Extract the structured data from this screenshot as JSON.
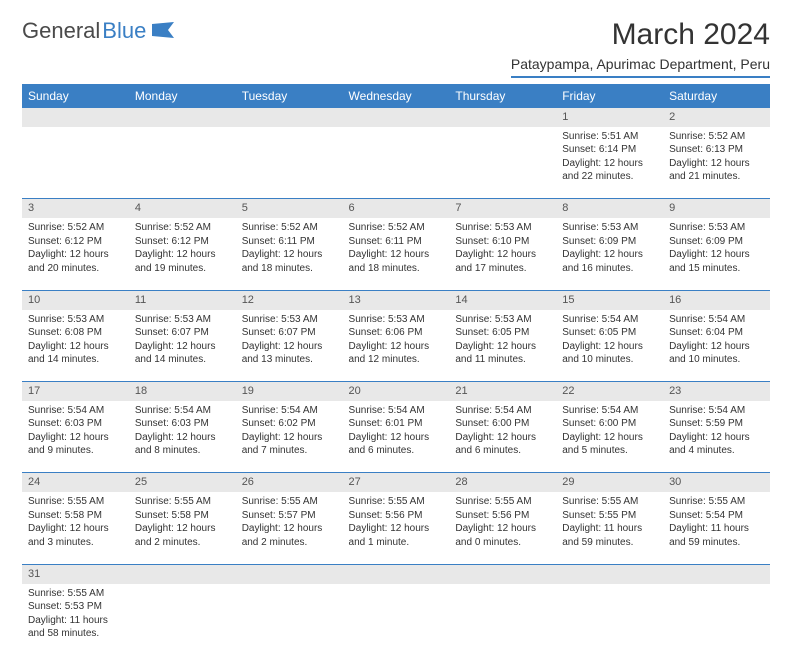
{
  "logo": {
    "text1": "General",
    "text2": "Blue"
  },
  "title": "March 2024",
  "subtitle": "Pataypampa, Apurimac Department, Peru",
  "colors": {
    "header_bg": "#3a7fc4",
    "header_text": "#ffffff",
    "daynum_bg": "#e8e8e8",
    "border": "#3a7fc4",
    "text": "#333333",
    "logo_gray": "#4a4a4a",
    "logo_blue": "#3a7fc4"
  },
  "weekdays": [
    "Sunday",
    "Monday",
    "Tuesday",
    "Wednesday",
    "Thursday",
    "Friday",
    "Saturday"
  ],
  "weeks": [
    [
      null,
      null,
      null,
      null,
      null,
      {
        "d": "1",
        "sr": "Sunrise: 5:51 AM",
        "ss": "Sunset: 6:14 PM",
        "dl1": "Daylight: 12 hours",
        "dl2": "and 22 minutes."
      },
      {
        "d": "2",
        "sr": "Sunrise: 5:52 AM",
        "ss": "Sunset: 6:13 PM",
        "dl1": "Daylight: 12 hours",
        "dl2": "and 21 minutes."
      }
    ],
    [
      {
        "d": "3",
        "sr": "Sunrise: 5:52 AM",
        "ss": "Sunset: 6:12 PM",
        "dl1": "Daylight: 12 hours",
        "dl2": "and 20 minutes."
      },
      {
        "d": "4",
        "sr": "Sunrise: 5:52 AM",
        "ss": "Sunset: 6:12 PM",
        "dl1": "Daylight: 12 hours",
        "dl2": "and 19 minutes."
      },
      {
        "d": "5",
        "sr": "Sunrise: 5:52 AM",
        "ss": "Sunset: 6:11 PM",
        "dl1": "Daylight: 12 hours",
        "dl2": "and 18 minutes."
      },
      {
        "d": "6",
        "sr": "Sunrise: 5:52 AM",
        "ss": "Sunset: 6:11 PM",
        "dl1": "Daylight: 12 hours",
        "dl2": "and 18 minutes."
      },
      {
        "d": "7",
        "sr": "Sunrise: 5:53 AM",
        "ss": "Sunset: 6:10 PM",
        "dl1": "Daylight: 12 hours",
        "dl2": "and 17 minutes."
      },
      {
        "d": "8",
        "sr": "Sunrise: 5:53 AM",
        "ss": "Sunset: 6:09 PM",
        "dl1": "Daylight: 12 hours",
        "dl2": "and 16 minutes."
      },
      {
        "d": "9",
        "sr": "Sunrise: 5:53 AM",
        "ss": "Sunset: 6:09 PM",
        "dl1": "Daylight: 12 hours",
        "dl2": "and 15 minutes."
      }
    ],
    [
      {
        "d": "10",
        "sr": "Sunrise: 5:53 AM",
        "ss": "Sunset: 6:08 PM",
        "dl1": "Daylight: 12 hours",
        "dl2": "and 14 minutes."
      },
      {
        "d": "11",
        "sr": "Sunrise: 5:53 AM",
        "ss": "Sunset: 6:07 PM",
        "dl1": "Daylight: 12 hours",
        "dl2": "and 14 minutes."
      },
      {
        "d": "12",
        "sr": "Sunrise: 5:53 AM",
        "ss": "Sunset: 6:07 PM",
        "dl1": "Daylight: 12 hours",
        "dl2": "and 13 minutes."
      },
      {
        "d": "13",
        "sr": "Sunrise: 5:53 AM",
        "ss": "Sunset: 6:06 PM",
        "dl1": "Daylight: 12 hours",
        "dl2": "and 12 minutes."
      },
      {
        "d": "14",
        "sr": "Sunrise: 5:53 AM",
        "ss": "Sunset: 6:05 PM",
        "dl1": "Daylight: 12 hours",
        "dl2": "and 11 minutes."
      },
      {
        "d": "15",
        "sr": "Sunrise: 5:54 AM",
        "ss": "Sunset: 6:05 PM",
        "dl1": "Daylight: 12 hours",
        "dl2": "and 10 minutes."
      },
      {
        "d": "16",
        "sr": "Sunrise: 5:54 AM",
        "ss": "Sunset: 6:04 PM",
        "dl1": "Daylight: 12 hours",
        "dl2": "and 10 minutes."
      }
    ],
    [
      {
        "d": "17",
        "sr": "Sunrise: 5:54 AM",
        "ss": "Sunset: 6:03 PM",
        "dl1": "Daylight: 12 hours",
        "dl2": "and 9 minutes."
      },
      {
        "d": "18",
        "sr": "Sunrise: 5:54 AM",
        "ss": "Sunset: 6:03 PM",
        "dl1": "Daylight: 12 hours",
        "dl2": "and 8 minutes."
      },
      {
        "d": "19",
        "sr": "Sunrise: 5:54 AM",
        "ss": "Sunset: 6:02 PM",
        "dl1": "Daylight: 12 hours",
        "dl2": "and 7 minutes."
      },
      {
        "d": "20",
        "sr": "Sunrise: 5:54 AM",
        "ss": "Sunset: 6:01 PM",
        "dl1": "Daylight: 12 hours",
        "dl2": "and 6 minutes."
      },
      {
        "d": "21",
        "sr": "Sunrise: 5:54 AM",
        "ss": "Sunset: 6:00 PM",
        "dl1": "Daylight: 12 hours",
        "dl2": "and 6 minutes."
      },
      {
        "d": "22",
        "sr": "Sunrise: 5:54 AM",
        "ss": "Sunset: 6:00 PM",
        "dl1": "Daylight: 12 hours",
        "dl2": "and 5 minutes."
      },
      {
        "d": "23",
        "sr": "Sunrise: 5:54 AM",
        "ss": "Sunset: 5:59 PM",
        "dl1": "Daylight: 12 hours",
        "dl2": "and 4 minutes."
      }
    ],
    [
      {
        "d": "24",
        "sr": "Sunrise: 5:55 AM",
        "ss": "Sunset: 5:58 PM",
        "dl1": "Daylight: 12 hours",
        "dl2": "and 3 minutes."
      },
      {
        "d": "25",
        "sr": "Sunrise: 5:55 AM",
        "ss": "Sunset: 5:58 PM",
        "dl1": "Daylight: 12 hours",
        "dl2": "and 2 minutes."
      },
      {
        "d": "26",
        "sr": "Sunrise: 5:55 AM",
        "ss": "Sunset: 5:57 PM",
        "dl1": "Daylight: 12 hours",
        "dl2": "and 2 minutes."
      },
      {
        "d": "27",
        "sr": "Sunrise: 5:55 AM",
        "ss": "Sunset: 5:56 PM",
        "dl1": "Daylight: 12 hours",
        "dl2": "and 1 minute."
      },
      {
        "d": "28",
        "sr": "Sunrise: 5:55 AM",
        "ss": "Sunset: 5:56 PM",
        "dl1": "Daylight: 12 hours",
        "dl2": "and 0 minutes."
      },
      {
        "d": "29",
        "sr": "Sunrise: 5:55 AM",
        "ss": "Sunset: 5:55 PM",
        "dl1": "Daylight: 11 hours",
        "dl2": "and 59 minutes."
      },
      {
        "d": "30",
        "sr": "Sunrise: 5:55 AM",
        "ss": "Sunset: 5:54 PM",
        "dl1": "Daylight: 11 hours",
        "dl2": "and 59 minutes."
      }
    ],
    [
      {
        "d": "31",
        "sr": "Sunrise: 5:55 AM",
        "ss": "Sunset: 5:53 PM",
        "dl1": "Daylight: 11 hours",
        "dl2": "and 58 minutes."
      },
      null,
      null,
      null,
      null,
      null,
      null
    ]
  ]
}
